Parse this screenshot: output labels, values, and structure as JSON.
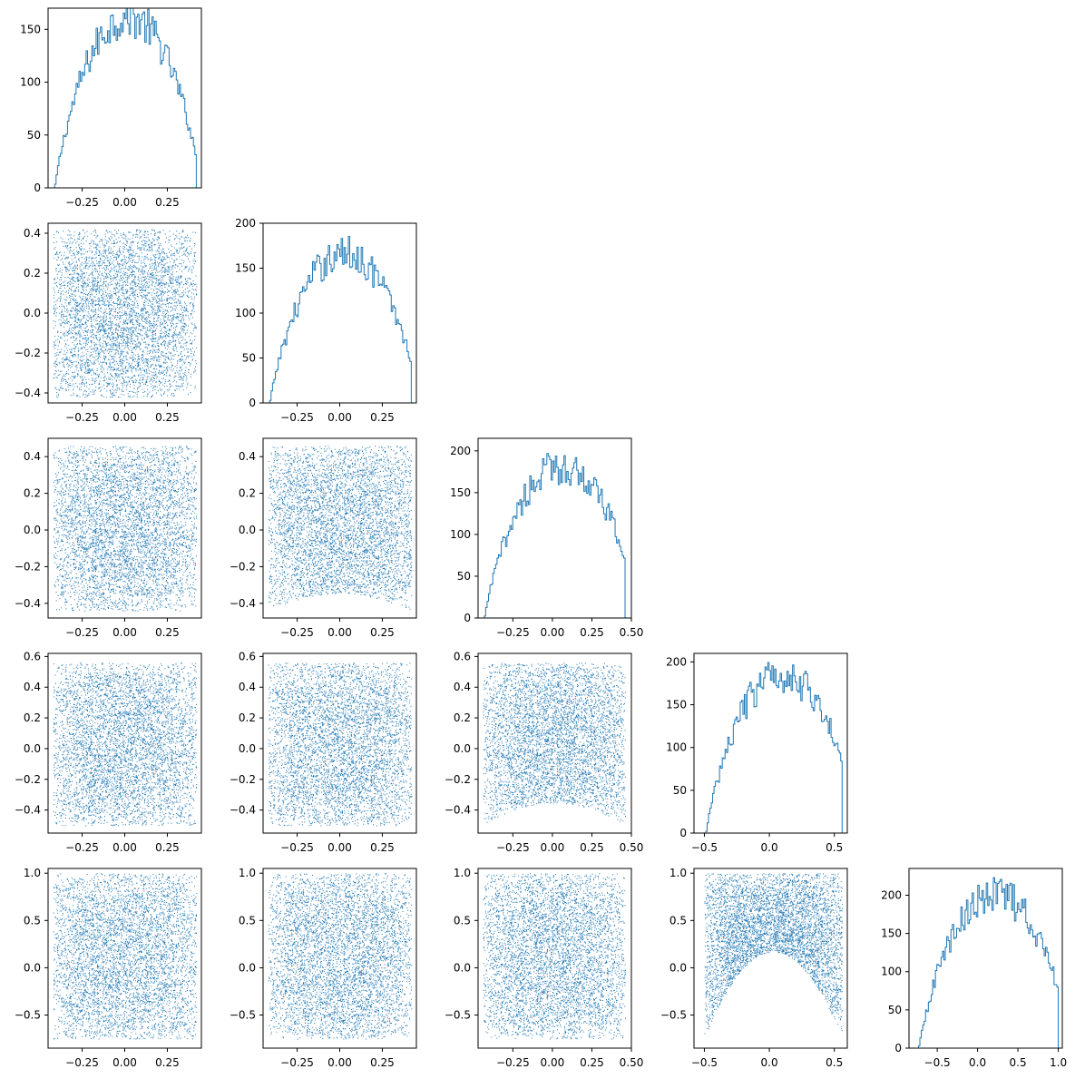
{
  "figure": {
    "title": "",
    "layout": "corner plot (lower triangle), 5 x 5",
    "series_color": "#1f77b4"
  },
  "chart_data": [
    {
      "type": "histogram",
      "panel": "hist-0",
      "row": 0,
      "col": 0,
      "xlim": [
        -0.45,
        0.45
      ],
      "ylim": [
        0,
        170
      ],
      "xticks": [
        -0.25,
        0.0,
        0.25
      ],
      "xtick_labels": [
        "−0.25",
        "0.00",
        "0.25"
      ],
      "yticks": [
        0,
        50,
        100,
        150
      ],
      "ytick_labels": [
        "0",
        "50",
        "100",
        "150"
      ],
      "support": [
        -0.42,
        0.42
      ],
      "peak": 165,
      "center": 0.02,
      "bins": 100
    },
    {
      "type": "scatter",
      "panel": "scatter-1-0",
      "row": 1,
      "col": 0,
      "xlim": [
        -0.45,
        0.45
      ],
      "ylim": [
        -0.45,
        0.45
      ],
      "xticks": [
        -0.25,
        0.0,
        0.25
      ],
      "xtick_labels": [
        "−0.25",
        "0.00",
        "0.25"
      ],
      "yticks": [
        -0.4,
        -0.2,
        0.0,
        0.2,
        0.4
      ],
      "ytick_labels": [
        "−0.4",
        "−0.2",
        "0.0",
        "0.2",
        "0.4"
      ],
      "x_range": [
        -0.42,
        0.42
      ],
      "y_range": [
        -0.42,
        0.42
      ],
      "n_points": 5000,
      "cup_shape": 0.0
    },
    {
      "type": "histogram",
      "panel": "hist-1",
      "row": 1,
      "col": 1,
      "xlim": [
        -0.45,
        0.45
      ],
      "ylim": [
        0,
        200
      ],
      "xticks": [
        -0.25,
        0.0,
        0.25
      ],
      "xtick_labels": [
        "−0.25",
        "0.00",
        "0.25"
      ],
      "yticks": [
        0,
        50,
        100,
        150,
        200
      ],
      "ytick_labels": [
        "0",
        "50",
        "100",
        "150",
        "200"
      ],
      "support": [
        -0.42,
        0.42
      ],
      "peak": 170,
      "center": 0.03,
      "bins": 100
    },
    {
      "type": "scatter",
      "panel": "scatter-2-0",
      "row": 2,
      "col": 0,
      "xlim": [
        -0.45,
        0.45
      ],
      "ylim": [
        -0.48,
        0.5
      ],
      "xticks": [
        -0.25,
        0.0,
        0.25
      ],
      "xtick_labels": [
        "−0.25",
        "0.00",
        "0.25"
      ],
      "yticks": [
        -0.4,
        -0.2,
        0.0,
        0.2,
        0.4
      ],
      "ytick_labels": [
        "−0.4",
        "−0.2",
        "0.0",
        "0.2",
        "0.4"
      ],
      "x_range": [
        -0.42,
        0.42
      ],
      "y_range": [
        -0.44,
        0.46
      ],
      "n_points": 5000,
      "cup_shape": 0.0
    },
    {
      "type": "scatter",
      "panel": "scatter-2-1",
      "row": 2,
      "col": 1,
      "xlim": [
        -0.45,
        0.45
      ],
      "ylim": [
        -0.48,
        0.5
      ],
      "xticks": [
        -0.25,
        0.0,
        0.25
      ],
      "xtick_labels": [
        "−0.25",
        "0.00",
        "0.25"
      ],
      "yticks": [
        -0.4,
        -0.2,
        0.0,
        0.2,
        0.4
      ],
      "ytick_labels": [
        "−0.4",
        "−0.2",
        "0.0",
        "0.2",
        "0.4"
      ],
      "x_range": [
        -0.42,
        0.42
      ],
      "y_range": [
        -0.44,
        0.46
      ],
      "n_points": 5000,
      "cup_shape": 0.15
    },
    {
      "type": "histogram",
      "panel": "hist-2",
      "row": 2,
      "col": 2,
      "xlim": [
        -0.47,
        0.5
      ],
      "ylim": [
        0,
        215
      ],
      "xticks": [
        -0.25,
        0.0,
        0.25,
        0.5
      ],
      "xtick_labels": [
        "−0.25",
        "0.00",
        "0.25",
        "0.50"
      ],
      "yticks": [
        0,
        50,
        100,
        150,
        200
      ],
      "ytick_labels": [
        "0",
        "50",
        "100",
        "150",
        "200"
      ],
      "support": [
        -0.44,
        0.46
      ],
      "peak": 185,
      "center": 0.06,
      "bins": 100
    },
    {
      "type": "scatter",
      "panel": "scatter-3-0",
      "row": 3,
      "col": 0,
      "xlim": [
        -0.45,
        0.45
      ],
      "ylim": [
        -0.55,
        0.62
      ],
      "xticks": [
        -0.25,
        0.0,
        0.25
      ],
      "xtick_labels": [
        "−0.25",
        "0.00",
        "0.25"
      ],
      "yticks": [
        -0.4,
        -0.2,
        0.0,
        0.2,
        0.4,
        0.6
      ],
      "ytick_labels": [
        "−0.4",
        "−0.2",
        "0.0",
        "0.2",
        "0.4",
        "0.6"
      ],
      "x_range": [
        -0.42,
        0.42
      ],
      "y_range": [
        -0.5,
        0.56
      ],
      "n_points": 5000,
      "cup_shape": 0.0
    },
    {
      "type": "scatter",
      "panel": "scatter-3-1",
      "row": 3,
      "col": 1,
      "xlim": [
        -0.45,
        0.45
      ],
      "ylim": [
        -0.55,
        0.62
      ],
      "xticks": [
        -0.25,
        0.0,
        0.25
      ],
      "xtick_labels": [
        "−0.25",
        "0.00",
        "0.25"
      ],
      "yticks": [
        -0.4,
        -0.2,
        0.0,
        0.2,
        0.4,
        0.6
      ],
      "ytick_labels": [
        "−0.4",
        "−0.2",
        "0.0",
        "0.2",
        "0.4",
        "0.6"
      ],
      "x_range": [
        -0.42,
        0.42
      ],
      "y_range": [
        -0.5,
        0.56
      ],
      "n_points": 5000,
      "cup_shape": 0.0
    },
    {
      "type": "scatter",
      "panel": "scatter-3-2",
      "row": 3,
      "col": 2,
      "xlim": [
        -0.47,
        0.5
      ],
      "ylim": [
        -0.55,
        0.62
      ],
      "xticks": [
        -0.25,
        0.0,
        0.25,
        0.5
      ],
      "xtick_labels": [
        "−0.25",
        "0.00",
        "0.25",
        "0.50"
      ],
      "yticks": [
        -0.4,
        -0.2,
        0.0,
        0.2,
        0.4,
        0.6
      ],
      "ytick_labels": [
        "−0.4",
        "−0.2",
        "0.0",
        "0.2",
        "0.4",
        "0.6"
      ],
      "x_range": [
        -0.44,
        0.46
      ],
      "y_range": [
        -0.5,
        0.56
      ],
      "n_points": 5000,
      "cup_shape": 0.2
    },
    {
      "type": "histogram",
      "panel": "hist-3",
      "row": 3,
      "col": 3,
      "xlim": [
        -0.58,
        0.6
      ],
      "ylim": [
        0,
        210
      ],
      "xticks": [
        -0.5,
        0.0,
        0.5
      ],
      "xtick_labels": [
        "−0.5",
        "0.0",
        "0.5"
      ],
      "yticks": [
        0,
        50,
        100,
        150,
        200
      ],
      "ytick_labels": [
        "0",
        "50",
        "100",
        "150",
        "200"
      ],
      "support": [
        -0.5,
        0.56
      ],
      "peak": 190,
      "center": 0.1,
      "bins": 100
    },
    {
      "type": "scatter",
      "panel": "scatter-4-0",
      "row": 4,
      "col": 0,
      "xlim": [
        -0.45,
        0.45
      ],
      "ylim": [
        -0.85,
        1.05
      ],
      "xticks": [
        -0.25,
        0.0,
        0.25
      ],
      "xtick_labels": [
        "−0.25",
        "0.00",
        "0.25"
      ],
      "yticks": [
        -0.5,
        0.0,
        0.5,
        1.0
      ],
      "ytick_labels": [
        "−0.5",
        "0.0",
        "0.5",
        "1.0"
      ],
      "x_range": [
        -0.42,
        0.42
      ],
      "y_range": [
        -0.75,
        1.0
      ],
      "n_points": 5000,
      "cup_shape": 0.0
    },
    {
      "type": "scatter",
      "panel": "scatter-4-1",
      "row": 4,
      "col": 1,
      "xlim": [
        -0.45,
        0.45
      ],
      "ylim": [
        -0.85,
        1.05
      ],
      "xticks": [
        -0.25,
        0.0,
        0.25
      ],
      "xtick_labels": [
        "−0.25",
        "0.00",
        "0.25"
      ],
      "yticks": [
        -0.5,
        0.0,
        0.5,
        1.0
      ],
      "ytick_labels": [
        "−0.5",
        "0.0",
        "0.5",
        "1.0"
      ],
      "x_range": [
        -0.42,
        0.42
      ],
      "y_range": [
        -0.75,
        1.0
      ],
      "n_points": 5000,
      "cup_shape": 0.0
    },
    {
      "type": "scatter",
      "panel": "scatter-4-2",
      "row": 4,
      "col": 2,
      "xlim": [
        -0.47,
        0.5
      ],
      "ylim": [
        -0.85,
        1.05
      ],
      "xticks": [
        -0.25,
        0.0,
        0.25,
        0.5
      ],
      "xtick_labels": [
        "−0.25",
        "0.00",
        "0.25",
        "0.50"
      ],
      "yticks": [
        -0.5,
        0.0,
        0.5,
        1.0
      ],
      "ytick_labels": [
        "−0.5",
        "0.0",
        "0.5",
        "1.0"
      ],
      "x_range": [
        -0.44,
        0.46
      ],
      "y_range": [
        -0.75,
        1.0
      ],
      "n_points": 5000,
      "cup_shape": 0.0
    },
    {
      "type": "scatter",
      "panel": "scatter-4-3",
      "row": 4,
      "col": 3,
      "xlim": [
        -0.58,
        0.6
      ],
      "ylim": [
        -0.85,
        1.05
      ],
      "xticks": [
        -0.5,
        0.0,
        0.5
      ],
      "xtick_labels": [
        "−0.5",
        "0.0",
        "0.5"
      ],
      "yticks": [
        -0.5,
        0.0,
        0.5,
        1.0
      ],
      "ytick_labels": [
        "−0.5",
        "0.0",
        "0.5",
        "1.0"
      ],
      "x_range": [
        -0.5,
        0.56
      ],
      "y_range": [
        -0.75,
        1.0
      ],
      "n_points": 5000,
      "cup_shape": 0.75
    },
    {
      "type": "histogram",
      "panel": "hist-4",
      "row": 4,
      "col": 4,
      "xlim": [
        -0.85,
        1.05
      ],
      "ylim": [
        0,
        235
      ],
      "xticks": [
        -0.5,
        0.0,
        0.5,
        1.0
      ],
      "xtick_labels": [
        "−0.5",
        "0.0",
        "0.5",
        "1.0"
      ],
      "yticks": [
        0,
        50,
        100,
        150,
        200
      ],
      "ytick_labels": [
        "0",
        "50",
        "100",
        "150",
        "200"
      ],
      "support": [
        -0.75,
        1.0
      ],
      "peak": 205,
      "center": 0.22,
      "bins": 100
    }
  ]
}
